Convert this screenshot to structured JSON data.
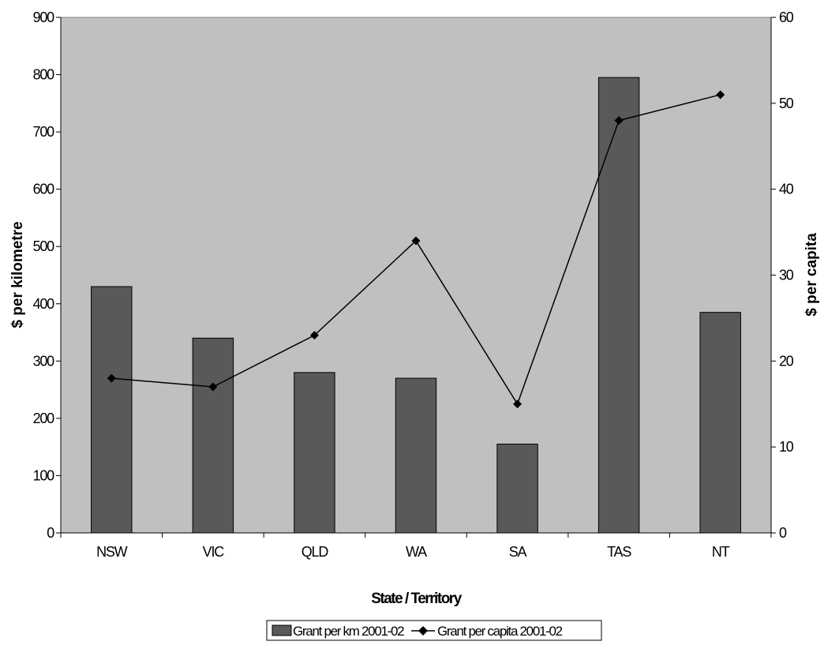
{
  "chart_data": {
    "type": "bar",
    "categories": [
      "NSW",
      "VIC",
      "QLD",
      "WA",
      "SA",
      "TAS",
      "NT"
    ],
    "series": [
      {
        "name": "Grant per km 2001-02",
        "type": "bar",
        "axis": "left",
        "values": [
          430,
          340,
          280,
          270,
          155,
          795,
          385
        ],
        "color": "#595959"
      },
      {
        "name": "Grant per capita 2001-02",
        "type": "line",
        "axis": "right",
        "marker": "diamond",
        "values": [
          18,
          17,
          23,
          34,
          15,
          48,
          51
        ],
        "color": "#000000"
      }
    ],
    "title": "",
    "xlabel": "State / Territory",
    "ylabel": "$ per kilometre",
    "y2label": "$ per capita",
    "ylim": [
      0,
      900
    ],
    "y2lim": [
      0,
      60
    ],
    "yticks": [
      "0",
      "100",
      "200",
      "300",
      "400",
      "500",
      "600",
      "700",
      "800",
      "900"
    ],
    "y2ticks": [
      "0",
      "10",
      "20",
      "30",
      "40",
      "50",
      "60"
    ],
    "grid": false,
    "legend_position": "bottom",
    "plot_background": "#c0c0c0"
  }
}
